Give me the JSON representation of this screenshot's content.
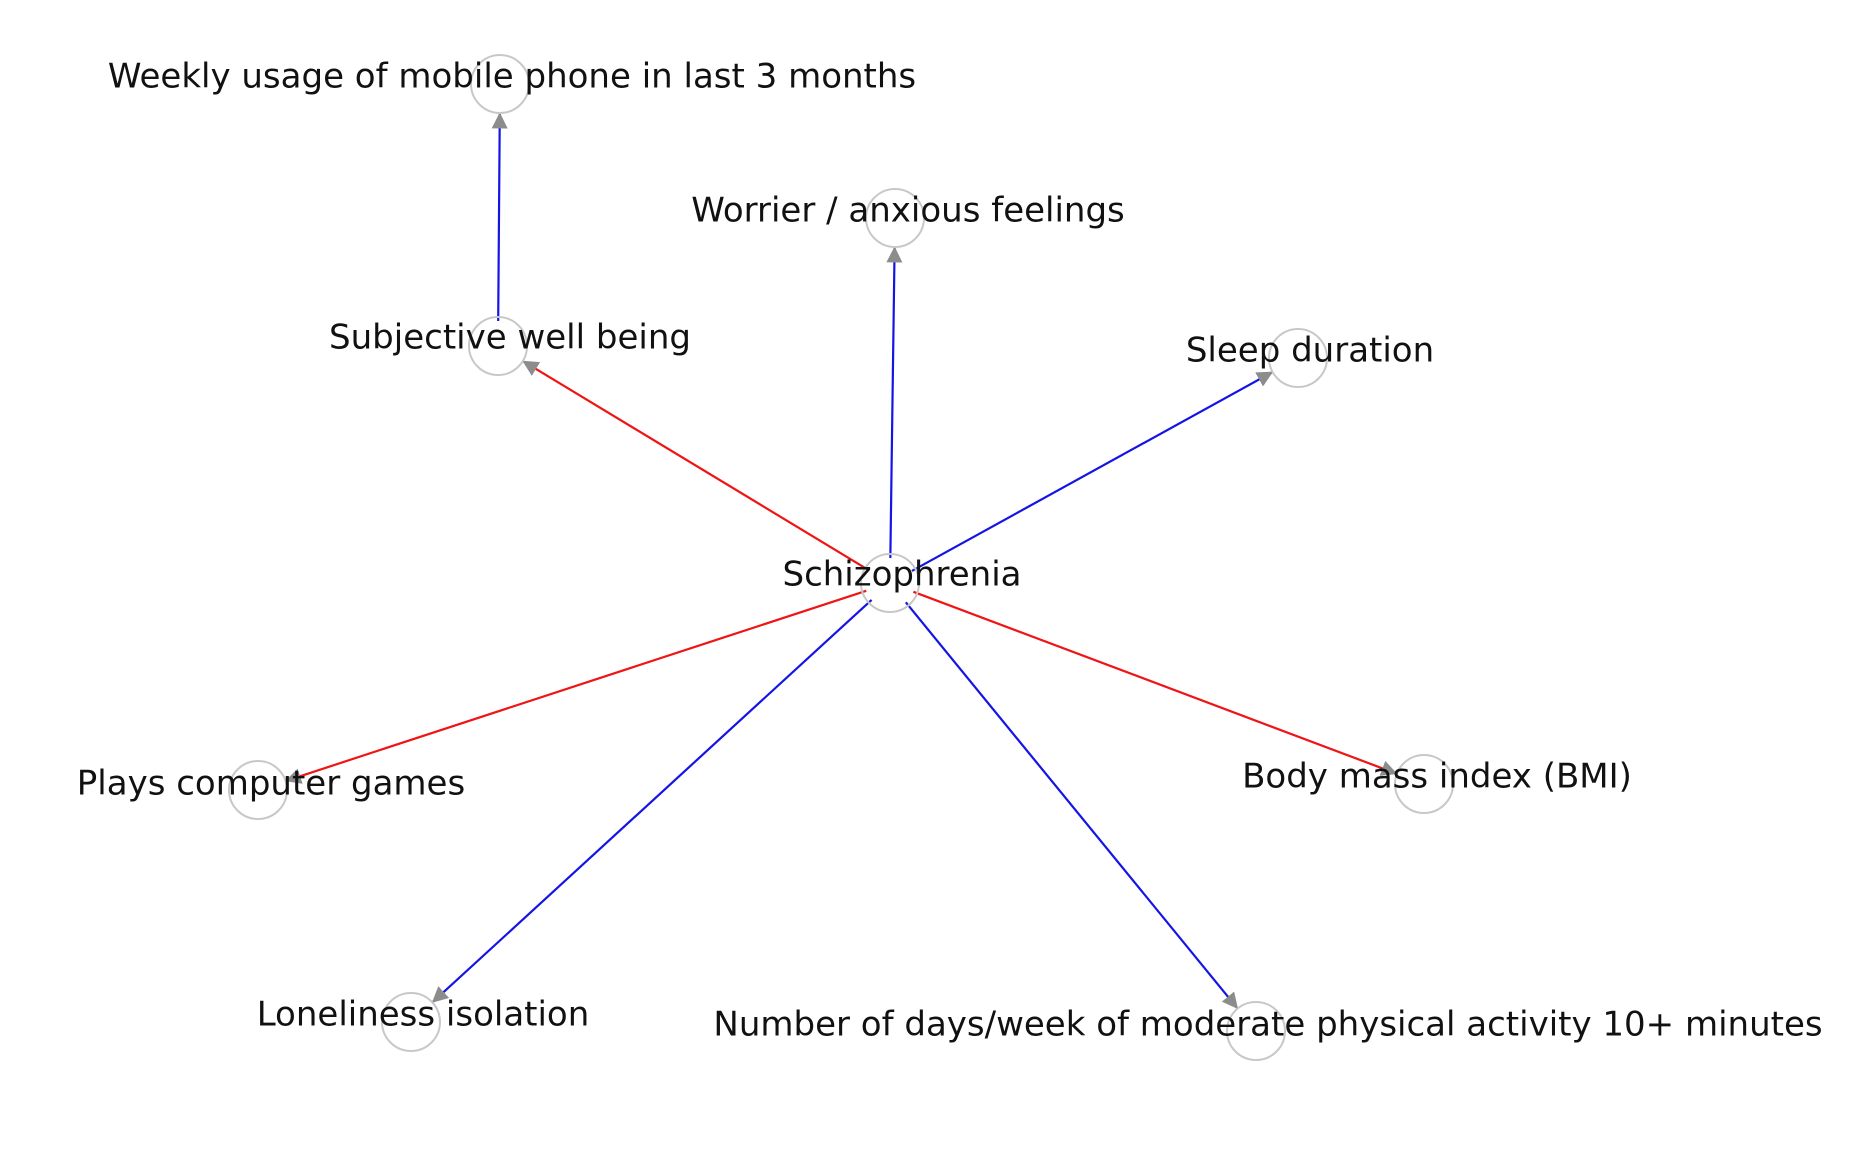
{
  "colors": {
    "positive_edge": "#1414e6",
    "negative_edge": "#f01414",
    "arrow_head": "#8c8c8c",
    "node_stroke": "#c8c8c8",
    "label": "#111111"
  },
  "nodes": [
    {
      "id": "schizophrenia",
      "label": "Schizophrenia"
    },
    {
      "id": "weekly_phone",
      "label": "Weekly usage of mobile phone in last 3 months"
    },
    {
      "id": "worrier",
      "label": "Worrier / anxious feelings"
    },
    {
      "id": "subjective_wellbeing",
      "label": "Subjective well being"
    },
    {
      "id": "sleep_duration",
      "label": "Sleep duration"
    },
    {
      "id": "computer_games",
      "label": "Plays computer games"
    },
    {
      "id": "bmi",
      "label": "Body mass index (BMI)"
    },
    {
      "id": "loneliness",
      "label": "Loneliness isolation"
    },
    {
      "id": "physical_activity",
      "label": "Number of days/week of moderate physical activity 10+ minutes"
    }
  ],
  "edges": [
    {
      "from": "subjective_wellbeing",
      "to": "weekly_phone",
      "sign": "positive"
    },
    {
      "from": "schizophrenia",
      "to": "worrier",
      "sign": "positive"
    },
    {
      "from": "schizophrenia",
      "to": "subjective_wellbeing",
      "sign": "negative"
    },
    {
      "from": "schizophrenia",
      "to": "sleep_duration",
      "sign": "positive"
    },
    {
      "from": "schizophrenia",
      "to": "computer_games",
      "sign": "negative"
    },
    {
      "from": "schizophrenia",
      "to": "bmi",
      "sign": "negative"
    },
    {
      "from": "schizophrenia",
      "to": "loneliness",
      "sign": "positive"
    },
    {
      "from": "schizophrenia",
      "to": "physical_activity",
      "sign": "positive"
    }
  ]
}
